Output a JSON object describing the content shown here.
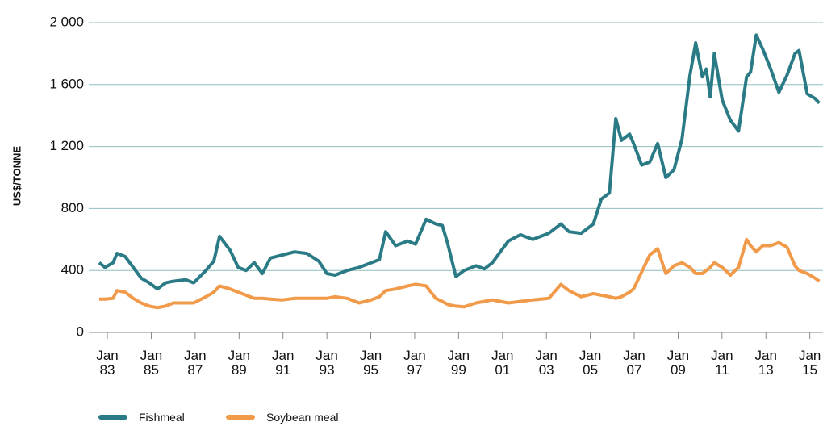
{
  "chart_data": {
    "type": "line",
    "y_label": "US$/TONNE",
    "x": [
      1982.63,
      1982.89,
      1983.26,
      1983.44,
      1983.81,
      1984.18,
      1984.54,
      1984.91,
      1985.28,
      1985.65,
      1986.01,
      1986.57,
      1986.93,
      1987.49,
      1987.85,
      1988.11,
      1988.59,
      1988.96,
      1989.32,
      1989.69,
      1990.06,
      1990.43,
      1990.98,
      1991.53,
      1992.08,
      1992.63,
      1993.0,
      1993.37,
      1993.92,
      1994.47,
      1995.02,
      1995.39,
      1995.68,
      1996.13,
      1996.68,
      1997.04,
      1997.52,
      1997.96,
      1998.26,
      1998.51,
      1998.88,
      1999.25,
      1999.8,
      2000.17,
      2000.54,
      2000.9,
      2001.27,
      2001.82,
      2002.38,
      2003.11,
      2003.66,
      2004.03,
      2004.58,
      2005.14,
      2005.5,
      2005.87,
      2006.16,
      2006.42,
      2006.79,
      2006.97,
      2007.34,
      2007.71,
      2008.07,
      2008.44,
      2008.81,
      2009.18,
      2009.54,
      2009.8,
      2010.1,
      2010.28,
      2010.46,
      2010.65,
      2011.01,
      2011.38,
      2011.75,
      2012.12,
      2012.3,
      2012.56,
      2012.85,
      2013.22,
      2013.59,
      2013.96,
      2014.32,
      2014.51,
      2014.88,
      2015.24,
      2015.43
    ],
    "series": [
      {
        "name": "Fishmeal",
        "color": "#2b7b86",
        "values": [
          450,
          420,
          450,
          510,
          490,
          420,
          350,
          320,
          280,
          320,
          330,
          340,
          320,
          400,
          460,
          620,
          530,
          420,
          400,
          450,
          380,
          480,
          500,
          520,
          510,
          460,
          380,
          370,
          400,
          420,
          450,
          470,
          650,
          560,
          590,
          570,
          730,
          700,
          690,
          570,
          360,
          400,
          430,
          410,
          450,
          520,
          590,
          630,
          600,
          640,
          700,
          650,
          640,
          700,
          860,
          900,
          1380,
          1240,
          1280,
          1220,
          1080,
          1100,
          1220,
          1000,
          1050,
          1250,
          1660,
          1870,
          1650,
          1700,
          1520,
          1800,
          1500,
          1370,
          1300,
          1650,
          1680,
          1920,
          1830,
          1700,
          1550,
          1660,
          1800,
          1820,
          1540,
          1510,
          1480
        ]
      },
      {
        "name": "Soybean meal",
        "color": "#f19a4a",
        "values": [
          215,
          215,
          220,
          270,
          260,
          220,
          190,
          170,
          160,
          170,
          190,
          190,
          190,
          230,
          260,
          300,
          280,
          260,
          240,
          220,
          220,
          215,
          210,
          220,
          220,
          220,
          220,
          230,
          220,
          190,
          210,
          230,
          270,
          280,
          300,
          310,
          300,
          220,
          200,
          180,
          170,
          165,
          190,
          200,
          210,
          200,
          190,
          200,
          210,
          220,
          310,
          270,
          230,
          250,
          240,
          230,
          220,
          230,
          260,
          280,
          390,
          500,
          540,
          380,
          430,
          450,
          420,
          380,
          380,
          400,
          420,
          450,
          420,
          370,
          420,
          600,
          560,
          520,
          560,
          560,
          580,
          550,
          430,
          400,
          380,
          350,
          330
        ]
      }
    ],
    "xlim": [
      1982.63,
      2015.6
    ],
    "xticks": [
      {
        "value": 1983,
        "label": "Jan\n83"
      },
      {
        "value": 1985,
        "label": "Jan\n85"
      },
      {
        "value": 1987,
        "label": "Jan\n87"
      },
      {
        "value": 1989,
        "label": "Jan\n89"
      },
      {
        "value": 1991,
        "label": "Jan\n91"
      },
      {
        "value": 1993,
        "label": "Jan\n93"
      },
      {
        "value": 1995,
        "label": "Jan\n95"
      },
      {
        "value": 1997,
        "label": "Jan\n97"
      },
      {
        "value": 1999,
        "label": "Jan\n99"
      },
      {
        "value": 2001,
        "label": "Jan\n01"
      },
      {
        "value": 2003,
        "label": "Jan\n03"
      },
      {
        "value": 2005,
        "label": "Jan\n05"
      },
      {
        "value": 2007,
        "label": "Jan\n07"
      },
      {
        "value": 2009,
        "label": "Jan\n09"
      },
      {
        "value": 2011,
        "label": "Jan\n11"
      },
      {
        "value": 2013,
        "label": "Jan\n13"
      },
      {
        "value": 2015,
        "label": "Jan\n15"
      }
    ],
    "ylim": [
      0,
      2000
    ],
    "yticks": [
      0,
      400,
      800,
      {
        "value": 1200,
        "label": "1 200"
      },
      {
        "value": 1600,
        "label": "1 600"
      },
      {
        "value": 2000,
        "label": "2 000"
      }
    ],
    "grid": true
  }
}
